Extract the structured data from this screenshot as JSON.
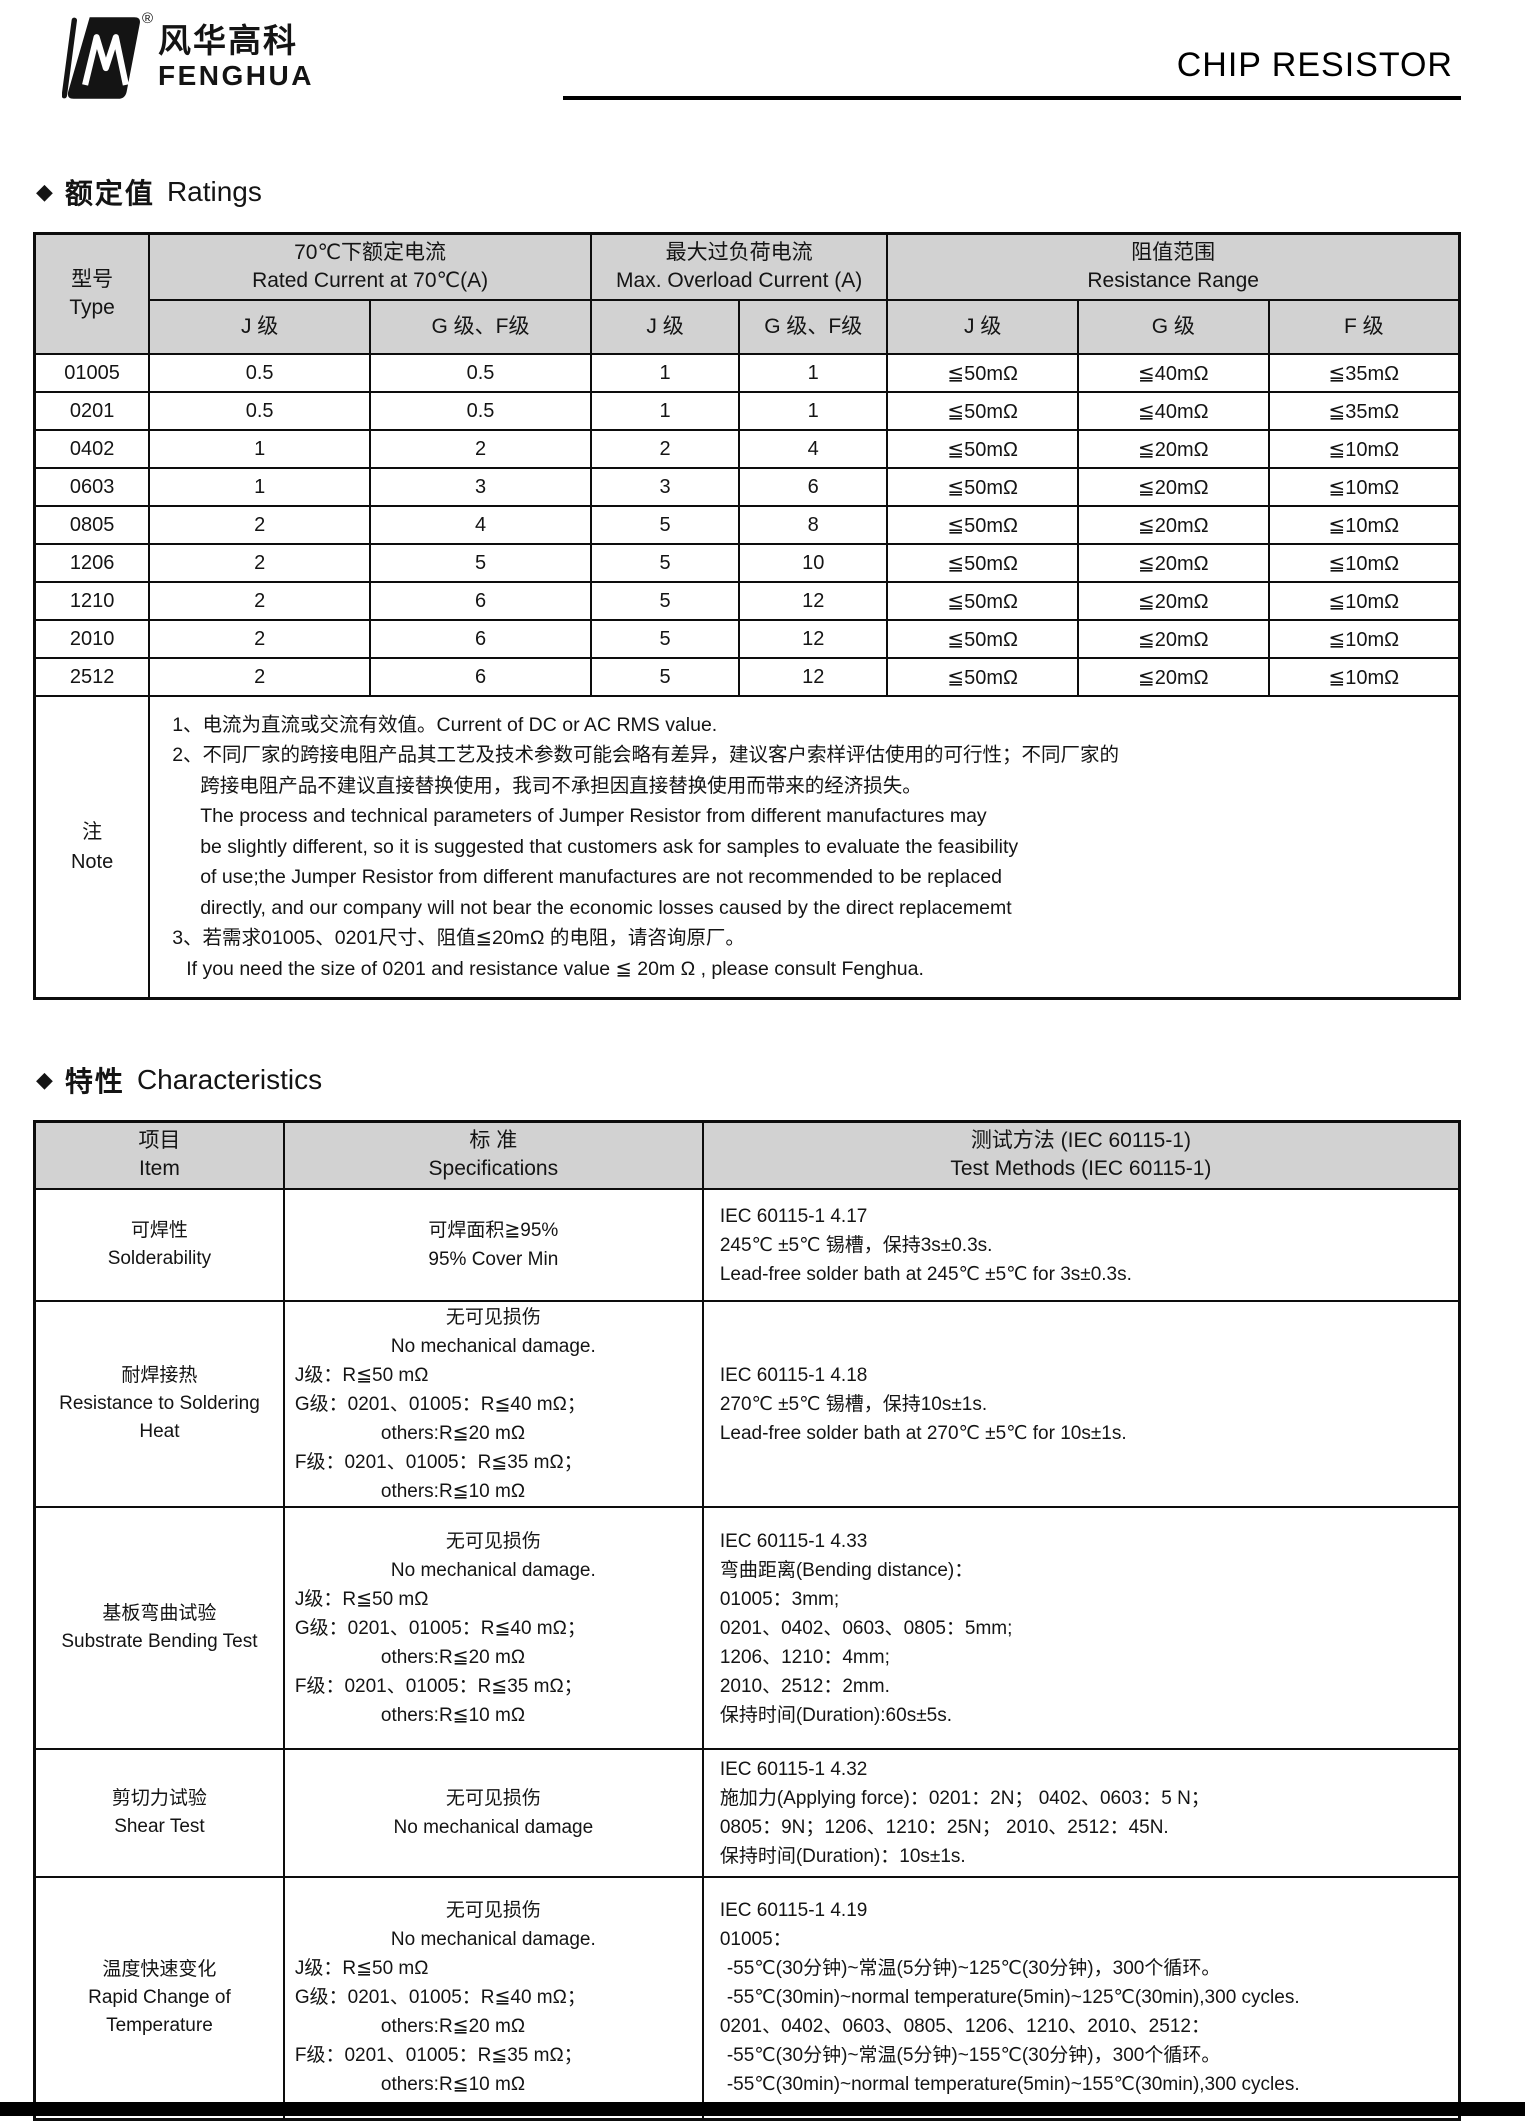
{
  "header": {
    "brand_cn": "风华高科",
    "brand_en": "FENGHUA",
    "reg": "®",
    "page_title": "CHIP RESISTOR"
  },
  "ratings": {
    "marker": "◆",
    "title_cn": "额定值",
    "title_en": "Ratings",
    "table": {
      "type_cn": "型号",
      "type_en": "Type",
      "rated_cn": "70℃下额定电流",
      "rated_en": "Rated Current at 70℃(A)",
      "overload_cn": "最大过负荷电流",
      "overload_en": "Max. Overload Current (A)",
      "resistance_cn": "阻值范围",
      "resistance_en": "Resistance Range",
      "sub_j": "J 级",
      "sub_gf": "G 级、F级",
      "sub_g": "G 级",
      "sub_f": "F 级",
      "rows": [
        {
          "type": "01005",
          "rated_j": "0.5",
          "rated_gf": "0.5",
          "over_j": "1",
          "over_gf": "1",
          "res_j": "≦50mΩ",
          "res_g": "≦40mΩ",
          "res_f": "≦35mΩ"
        },
        {
          "type": "0201",
          "rated_j": "0.5",
          "rated_gf": "0.5",
          "over_j": "1",
          "over_gf": "1",
          "res_j": "≦50mΩ",
          "res_g": "≦40mΩ",
          "res_f": "≦35mΩ"
        },
        {
          "type": "0402",
          "rated_j": "1",
          "rated_gf": "2",
          "over_j": "2",
          "over_gf": "4",
          "res_j": "≦50mΩ",
          "res_g": "≦20mΩ",
          "res_f": "≦10mΩ"
        },
        {
          "type": "0603",
          "rated_j": "1",
          "rated_gf": "3",
          "over_j": "3",
          "over_gf": "6",
          "res_j": "≦50mΩ",
          "res_g": "≦20mΩ",
          "res_f": "≦10mΩ"
        },
        {
          "type": "0805",
          "rated_j": "2",
          "rated_gf": "4",
          "over_j": "5",
          "over_gf": "8",
          "res_j": "≦50mΩ",
          "res_g": "≦20mΩ",
          "res_f": "≦10mΩ"
        },
        {
          "type": "1206",
          "rated_j": "2",
          "rated_gf": "5",
          "over_j": "5",
          "over_gf": "10",
          "res_j": "≦50mΩ",
          "res_g": "≦20mΩ",
          "res_f": "≦10mΩ"
        },
        {
          "type": "1210",
          "rated_j": "2",
          "rated_gf": "6",
          "over_j": "5",
          "over_gf": "12",
          "res_j": "≦50mΩ",
          "res_g": "≦20mΩ",
          "res_f": "≦10mΩ"
        },
        {
          "type": "2010",
          "rated_j": "2",
          "rated_gf": "6",
          "over_j": "5",
          "over_gf": "12",
          "res_j": "≦50mΩ",
          "res_g": "≦20mΩ",
          "res_f": "≦10mΩ"
        },
        {
          "type": "2512",
          "rated_j": "2",
          "rated_gf": "6",
          "over_j": "5",
          "over_gf": "12",
          "res_j": "≦50mΩ",
          "res_g": "≦20mΩ",
          "res_f": "≦10mΩ"
        }
      ],
      "note_cn": "注",
      "note_en": "Note",
      "note_lines": [
        "1、电流为直流或交流有效值。Current of DC or AC RMS value.",
        "2、不同厂家的跨接电阻产品其工艺及技术参数可能会略有差异，建议客户索样评估使用的可行性；不同厂家的",
        "跨接电阻产品不建议直接替换使用，我司不承担因直接替换使用而带来的经济损失。",
        "The process and technical parameters of Jumper Resistor from different manufactures may",
        "be slightly different, so it is suggested that customers ask for samples to evaluate the feasibility",
        "of use;the Jumper Resistor from different manufactures are not recommended to be replaced",
        "directly, and our company will not bear the economic losses caused by the direct replacememt",
        "3、若需求01005、0201尺寸、阻值≦20mΩ 的电阻，请咨询原厂。",
        "If you need the size of 0201 and resistance value ≦ 20m Ω , please consult Fenghua."
      ]
    }
  },
  "characteristics": {
    "marker": "◆",
    "title_cn": "特性",
    "title_en": "Characteristics",
    "table": {
      "item_cn": "项目",
      "item_en": "Item",
      "spec_cn": "标 准",
      "spec_en": "Specifications",
      "test_cn": "测试方法 (IEC 60115-1)",
      "test_en": "Test Methods (IEC 60115-1)",
      "rows": [
        {
          "item_cn": "可焊性",
          "item_en": "Solderability",
          "spec_lines": [
            "可焊面积≧95%",
            "95% Cover Min"
          ],
          "test_lines": [
            "IEC 60115-1 4.17",
            "245℃ ±5℃ 锡槽，保持3s±0.3s.",
            "Lead-free solder bath at 245℃ ±5℃ for 3s±0.3s."
          ]
        },
        {
          "item_cn": "耐焊接热",
          "item_en": "Resistance to Soldering Heat",
          "spec_lines": [
            "无可见损伤",
            "No mechanical damage.",
            "J级：R≦50 mΩ",
            "G级：0201、01005：R≦40 mΩ；",
            "others:R≦20 mΩ",
            "F级：0201、01005：R≦35 mΩ；",
            "others:R≦10 mΩ"
          ],
          "test_lines": [
            "IEC 60115-1 4.18",
            "270℃ ±5℃ 锡槽，保持10s±1s.",
            "Lead-free solder bath at 270℃ ±5℃ for 10s±1s."
          ]
        },
        {
          "item_cn": "基板弯曲试验",
          "item_en": "Substrate Bending Test",
          "spec_lines": [
            "无可见损伤",
            "No mechanical damage.",
            "J级：R≦50 mΩ",
            "G级：0201、01005：R≦40 mΩ；",
            "others:R≦20 mΩ",
            "F级：0201、01005：R≦35 mΩ；",
            "others:R≦10 mΩ"
          ],
          "test_lines": [
            "IEC 60115-1 4.33",
            "弯曲距离(Bending distance)：",
            "01005：3mm;",
            "0201、0402、0603、0805：5mm;",
            "1206、1210：4mm;",
            "2010、2512：2mm.",
            "保持时间(Duration):60s±5s."
          ]
        },
        {
          "item_cn": "剪切力试验",
          "item_en": "Shear Test",
          "spec_lines": [
            "无可见损伤",
            "No mechanical damage"
          ],
          "test_lines": [
            "IEC 60115-1 4.32",
            "施加力(Applying force)：0201：2N； 0402、0603：5 N；",
            "0805：9N；1206、1210：25N； 2010、2512：45N.",
            "保持时间(Duration)：10s±1s."
          ]
        },
        {
          "item_cn": "温度快速变化",
          "item_en": "Rapid Change of Temperature",
          "spec_lines": [
            "无可见损伤",
            "No mechanical damage.",
            "J级：R≦50 mΩ",
            "G级：0201、01005：R≦40 mΩ；",
            "others:R≦20 mΩ",
            "F级：0201、01005：R≦35 mΩ；",
            "others:R≦10 mΩ"
          ],
          "test_lines": [
            "IEC 60115-1 4.19",
            "01005：",
            "-55℃(30分钟)~常温(5分钟)~125℃(30分钟)，300个循环。",
            "-55℃(30min)~normal temperature(5min)~125℃(30min),300 cycles.",
            "0201、0402、0603、0805、1206、1210、2010、2512：",
            "-55℃(30分钟)~常温(5分钟)~155℃(30分钟)，300个循环。",
            "-55℃(30min)~normal temperature(5min)~155℃(30min),300 cycles."
          ]
        }
      ]
    }
  }
}
